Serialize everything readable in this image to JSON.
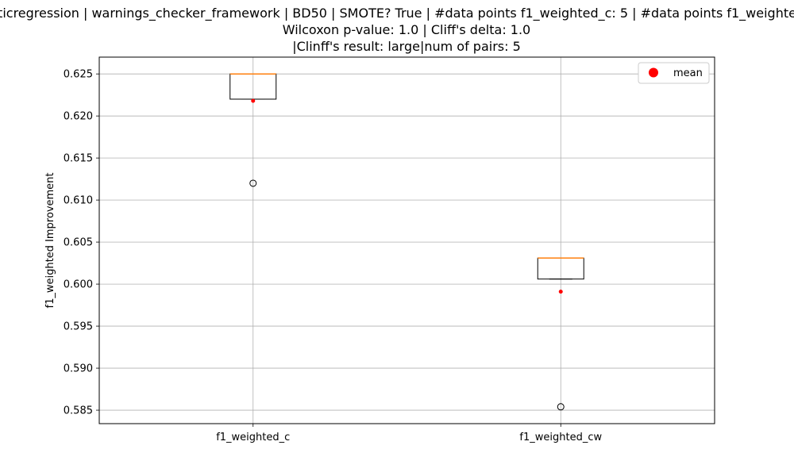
{
  "chart_data": {
    "type": "box",
    "title_lines": [
      "ticregression | warnings_checker_framework | BD50 | SMOTE? True | #data points f1_weighted_c: 5 | #data points f1_weighte",
      "Wilcoxon p-value: 1.0 | Cliff's delta: 1.0",
      "|Clinff's result: large|num of pairs: 5"
    ],
    "ylabel": "f1_weighted Improvement",
    "xlabel": "",
    "ylim": [
      0.5834,
      0.627
    ],
    "yticks": [
      0.585,
      0.59,
      0.595,
      0.6,
      0.605,
      0.61,
      0.615,
      0.62,
      0.625
    ],
    "ytick_labels": [
      "0.585",
      "0.590",
      "0.595",
      "0.600",
      "0.605",
      "0.610",
      "0.615",
      "0.620",
      "0.625"
    ],
    "grid": true,
    "legend_position": "top-right",
    "legend": [
      {
        "label": "mean",
        "color": "#ff0000",
        "marker": "circle"
      }
    ],
    "categories": [
      "f1_weighted_c",
      "f1_weighted_cw"
    ],
    "boxes": [
      {
        "name": "f1_weighted_c",
        "q1": 0.622,
        "median": 0.625,
        "q3": 0.625,
        "whisker_low": 0.622,
        "whisker_high": 0.625,
        "outliers": [
          0.612
        ],
        "mean": 0.6218
      },
      {
        "name": "f1_weighted_cw",
        "q1": 0.6006,
        "median": 0.6031,
        "q3": 0.6031,
        "whisker_low": 0.6006,
        "whisker_high": 0.6031,
        "outliers": [
          0.5854
        ],
        "mean": 0.5991
      }
    ],
    "colors": {
      "box": "#000000",
      "median": "#ff7f0e",
      "mean": "#ff0000",
      "grid": "#b0b0b0",
      "flier": "#000000"
    }
  }
}
